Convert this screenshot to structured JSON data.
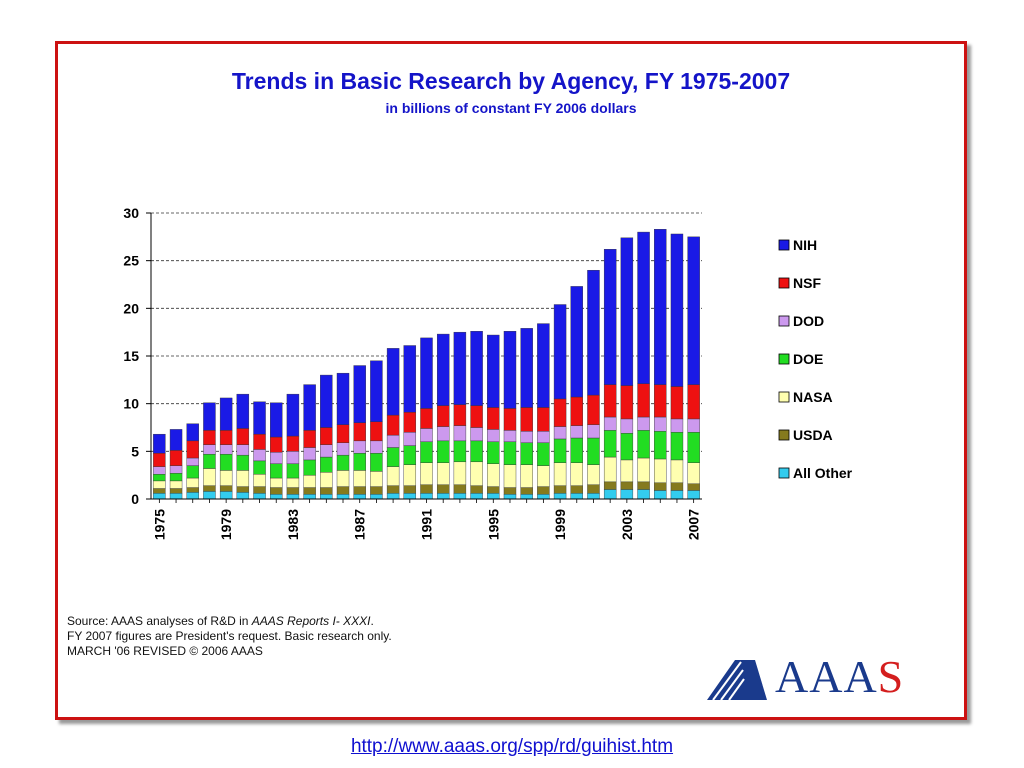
{
  "page": {
    "link": "http://www.aaas.org/spp/rd/guihist.htm",
    "logo_text": "AAAS",
    "colors": {
      "frame": "#cc1111",
      "title": "#1414c8",
      "logo_blue": "#1a3a8c",
      "logo_red": "#d41e1e",
      "link": "#1010d0"
    }
  },
  "source": {
    "line1_pre": "Source: AAAS analyses of R&D in ",
    "line1_italic": "AAAS Reports I- XXXI",
    "line1_post": ".",
    "line2": "FY 2007 figures are President's request. Basic research only.",
    "line3": "MARCH '06 REVISED © 2006 AAAS"
  },
  "chart_data": {
    "type": "bar",
    "stacked": true,
    "title": "Trends in Basic Research by Agency, FY 1975-2007",
    "subtitle": "in billions of constant FY 2006 dollars",
    "xlabel": "",
    "ylabel": "",
    "ylim": [
      0,
      30
    ],
    "yticks": [
      0,
      5,
      10,
      15,
      20,
      25,
      30
    ],
    "grid": "horizontal-dashed",
    "legend_position": "right",
    "categories": [
      "1975",
      "1976",
      "1977",
      "1978",
      "1979",
      "1980",
      "1981",
      "1982",
      "1983",
      "1984",
      "1985",
      "1986",
      "1987",
      "1988",
      "1989",
      "1990",
      "1991",
      "1992",
      "1993",
      "1994",
      "1995",
      "1996",
      "1997",
      "1998",
      "1999",
      "2000",
      "2001",
      "2002",
      "2003",
      "2004",
      "2005",
      "2006",
      "2007"
    ],
    "x_tick_labels": [
      "1975",
      "1979",
      "1983",
      "1987",
      "1991",
      "1995",
      "1999",
      "2003",
      "2007"
    ],
    "series": [
      {
        "name": "All Other",
        "color": "#33ccee",
        "values": [
          0.6,
          0.6,
          0.7,
          0.8,
          0.8,
          0.7,
          0.6,
          0.5,
          0.5,
          0.5,
          0.5,
          0.5,
          0.5,
          0.5,
          0.6,
          0.6,
          0.6,
          0.6,
          0.6,
          0.6,
          0.6,
          0.5,
          0.5,
          0.5,
          0.6,
          0.6,
          0.6,
          1.0,
          1.0,
          1.0,
          0.9,
          0.9,
          0.9
        ]
      },
      {
        "name": "USDA",
        "color": "#857a1e",
        "values": [
          0.5,
          0.5,
          0.5,
          0.6,
          0.6,
          0.6,
          0.7,
          0.7,
          0.7,
          0.7,
          0.7,
          0.8,
          0.8,
          0.8,
          0.8,
          0.8,
          0.9,
          0.9,
          0.9,
          0.8,
          0.7,
          0.7,
          0.7,
          0.8,
          0.8,
          0.8,
          0.9,
          0.8,
          0.8,
          0.8,
          0.8,
          0.8,
          0.7
        ]
      },
      {
        "name": "NASA",
        "color": "#ffffb0",
        "values": [
          0.8,
          0.8,
          1.0,
          1.8,
          1.6,
          1.7,
          1.3,
          1.0,
          1.0,
          1.3,
          1.6,
          1.7,
          1.7,
          1.6,
          2.0,
          2.2,
          2.3,
          2.3,
          2.4,
          2.5,
          2.4,
          2.4,
          2.4,
          2.2,
          2.4,
          2.4,
          2.1,
          2.6,
          2.3,
          2.5,
          2.5,
          2.4,
          2.2
        ]
      },
      {
        "name": "DOE",
        "color": "#22dd22",
        "values": [
          0.7,
          0.8,
          1.3,
          1.5,
          1.7,
          1.6,
          1.4,
          1.5,
          1.5,
          1.6,
          1.6,
          1.6,
          1.8,
          1.9,
          2.0,
          2.0,
          2.2,
          2.3,
          2.2,
          2.2,
          2.3,
          2.4,
          2.3,
          2.4,
          2.5,
          2.6,
          2.8,
          2.8,
          2.8,
          2.9,
          2.9,
          2.9,
          3.2
        ]
      },
      {
        "name": "DOD",
        "color": "#cc99ee",
        "values": [
          0.8,
          0.8,
          0.8,
          1.0,
          1.0,
          1.1,
          1.2,
          1.2,
          1.3,
          1.3,
          1.3,
          1.3,
          1.3,
          1.3,
          1.3,
          1.4,
          1.4,
          1.5,
          1.6,
          1.4,
          1.3,
          1.2,
          1.2,
          1.2,
          1.3,
          1.3,
          1.4,
          1.4,
          1.5,
          1.4,
          1.5,
          1.4,
          1.4
        ]
      },
      {
        "name": "NSF",
        "color": "#ee1111",
        "values": [
          1.4,
          1.6,
          1.8,
          1.5,
          1.5,
          1.7,
          1.6,
          1.6,
          1.6,
          1.8,
          1.8,
          1.9,
          1.9,
          2.0,
          2.1,
          2.1,
          2.1,
          2.2,
          2.2,
          2.3,
          2.3,
          2.3,
          2.5,
          2.5,
          2.9,
          3.0,
          3.1,
          3.4,
          3.5,
          3.5,
          3.4,
          3.4,
          3.6
        ]
      },
      {
        "name": "NIH",
        "color": "#1a1ae6",
        "values": [
          2.0,
          2.2,
          1.8,
          2.9,
          3.4,
          3.6,
          3.4,
          3.6,
          4.4,
          4.8,
          5.5,
          5.4,
          6.0,
          6.4,
          7.0,
          7.0,
          7.4,
          7.5,
          7.6,
          7.8,
          7.6,
          8.1,
          8.3,
          8.8,
          9.9,
          11.6,
          13.1,
          14.2,
          15.5,
          15.9,
          16.3,
          16.0,
          15.5
        ]
      }
    ]
  }
}
